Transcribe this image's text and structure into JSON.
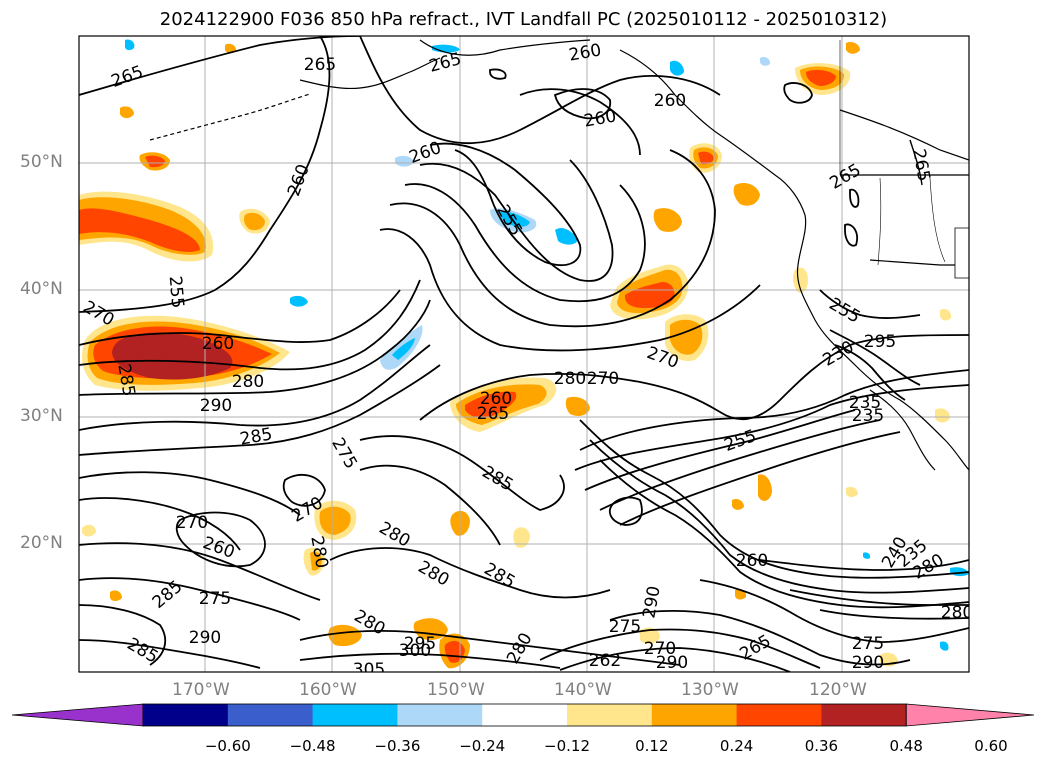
{
  "title": "2024122900 F036 850 hPa refract., IVT Landfall PC (2025010112 - 2025010312)",
  "lat_labels": [
    "50°N",
    "40°N",
    "30°N",
    "20°N"
  ],
  "lon_labels": [
    "170°W",
    "160°W",
    "150°W",
    "140°W",
    "130°W",
    "120°W"
  ],
  "colorbar": {
    "ticks": [
      "−0.60",
      "−0.48",
      "−0.36",
      "−0.24",
      "−0.12",
      "0.12",
      "0.24",
      "0.36",
      "0.48",
      "0.60"
    ],
    "colors": [
      "#9932cc",
      "#00008b",
      "#3a5fcd",
      "#00bfff",
      "#add8f8",
      "#ffffff",
      "#ffe68c",
      "#ffa500",
      "#ff4500",
      "#b22222",
      "#ff82ab"
    ]
  },
  "contour_labels": [
    "265",
    "265",
    "265",
    "260",
    "260",
    "260",
    "260",
    "260",
    "265",
    "265",
    "255",
    "255",
    "260",
    "280",
    "290",
    "285",
    "275",
    "270",
    "260",
    "265",
    "280",
    "285",
    "270",
    "270",
    "260",
    "255",
    "230",
    "235",
    "235",
    "270",
    "285",
    "280",
    "280",
    "285",
    "275",
    "290",
    "285",
    "280",
    "280",
    "270",
    "295",
    "300",
    "305",
    "280",
    "290",
    "275",
    "270",
    "265",
    "262",
    "290",
    "280",
    "275",
    "260",
    "240",
    "235",
    "280",
    "290",
    "295",
    "255",
    "285"
  ]
}
